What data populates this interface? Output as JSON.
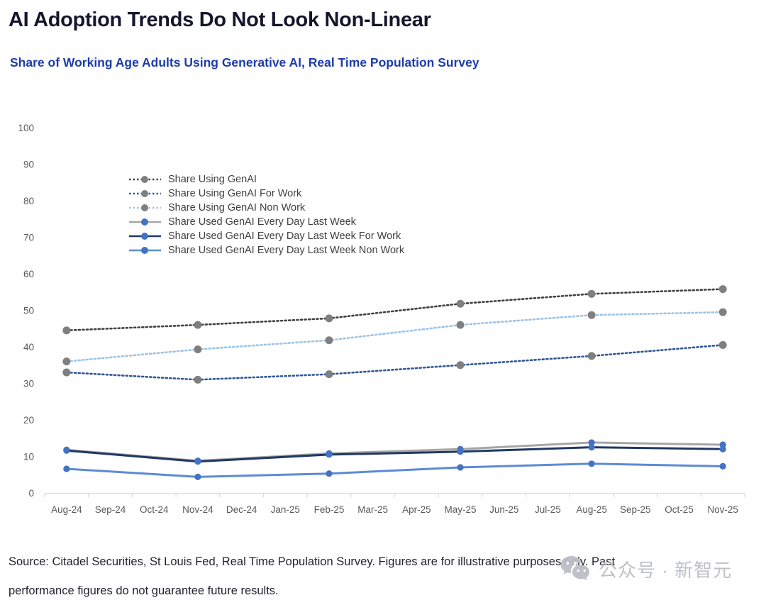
{
  "chart_data": {
    "type": "line",
    "title": "AI Adoption Trends Do Not Look Non-Linear",
    "subtitle": "Share of Working Age Adults Using Generative AI, Real Time Population Survey",
    "xlabel": "",
    "ylabel": "",
    "ylim": [
      0,
      100
    ],
    "ytick_step": 10,
    "grid": false,
    "legend_position": "upper-left-inside",
    "x_categories": [
      "Aug-24",
      "Sep-24",
      "Oct-24",
      "Nov-24",
      "Dec-24",
      "Jan-25",
      "Feb-25",
      "Mar-25",
      "Apr-25",
      "May-25",
      "Jun-25",
      "Jul-25",
      "Aug-25",
      "Sep-25",
      "Oct-25",
      "Nov-25"
    ],
    "data_x_labels": [
      "Aug-24",
      "Nov-24",
      "Feb-25",
      "May-25",
      "Aug-25",
      "Nov-25"
    ],
    "data_x_indices": [
      0,
      3,
      6,
      9,
      12,
      15
    ],
    "series": [
      {
        "name": "Share Using GenAI",
        "style": "dotted",
        "line_color": "#3F3F3F",
        "marker_color": "#7F7F7F",
        "values": [
          44.5,
          46.0,
          47.8,
          51.8,
          54.5,
          55.8
        ]
      },
      {
        "name": "Share Using GenAI For Work",
        "style": "dotted",
        "line_color": "#2F5597",
        "marker_color": "#7F7F7F",
        "values": [
          33.0,
          31.0,
          32.5,
          35.0,
          37.5,
          40.5
        ]
      },
      {
        "name": "Share Using GenAI Non Work",
        "style": "dotted",
        "line_color": "#9DC3E6",
        "marker_color": "#7F7F7F",
        "values": [
          36.0,
          39.3,
          41.8,
          46.0,
          48.7,
          49.5
        ]
      },
      {
        "name": "Share Used GenAI Every Day Last Week",
        "style": "solid",
        "line_color": "#A6A6A6",
        "marker_color": "#4472C4",
        "values": [
          11.8,
          8.8,
          10.8,
          12.0,
          13.8,
          13.2
        ]
      },
      {
        "name": "Share Used GenAI Every Day Last Week For Work",
        "style": "solid",
        "line_color": "#203864",
        "marker_color": "#4472C4",
        "values": [
          11.6,
          8.6,
          10.5,
          11.3,
          12.5,
          12.0
        ]
      },
      {
        "name": "Share Used GenAI Every Day Last Week Non Work",
        "style": "solid",
        "line_color": "#5B8BD5",
        "marker_color": "#4472C4",
        "values": [
          6.6,
          4.4,
          5.3,
          7.0,
          8.0,
          7.3
        ]
      }
    ]
  },
  "footer": {
    "line1": "Source: Citadel Securities, St Louis Fed, Real Time Population Survey. Figures are for illustrative purposes only. Past",
    "line2": "performance figures do not guarantee future results."
  },
  "watermark": {
    "text": "公众号 · 新智元",
    "icon": "wechat-icon"
  },
  "colors": {
    "title": "#15152D",
    "subtitle": "#1E3CA8",
    "axis_label": "#595959",
    "axis_line": "#D9D9D9",
    "legend_text": "#3F3F3F",
    "footer_text": "#23232E",
    "watermark": "#BCBDC6"
  }
}
